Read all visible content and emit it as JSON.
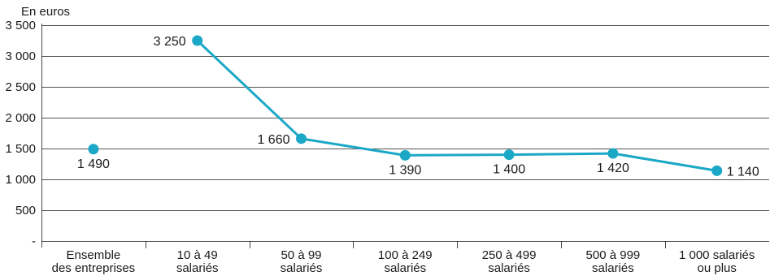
{
  "chart_data": {
    "type": "line",
    "ylabel": "En euros",
    "ylim": [
      0,
      3500
    ],
    "yticks": [
      {
        "value": 0,
        "label": "-"
      },
      {
        "value": 500,
        "label": "500"
      },
      {
        "value": 1000,
        "label": "1 000"
      },
      {
        "value": 1500,
        "label": "1 500"
      },
      {
        "value": 2000,
        "label": "2 000"
      },
      {
        "value": 2500,
        "label": "2 500"
      },
      {
        "value": 3000,
        "label": "3 000"
      },
      {
        "value": 3500,
        "label": "3 500"
      }
    ],
    "grid": true,
    "categories": [
      [
        "Ensemble",
        "des entreprises"
      ],
      [
        "10 à 49",
        "salariés"
      ],
      [
        "50 à 99",
        "salariés"
      ],
      [
        "100 à 249",
        "salariés"
      ],
      [
        "250 à 499",
        "salariés"
      ],
      [
        "500 à 999",
        "salariés"
      ],
      [
        "1 000 salariés",
        "ou plus"
      ]
    ],
    "series": [
      {
        "values": [
          1490,
          3250,
          1660,
          1390,
          1400,
          1420,
          1140
        ],
        "labels": [
          "1 490",
          "3 250",
          "1 660",
          "1 390",
          "1 400",
          "1 420",
          "1 140"
        ],
        "connected": [
          false,
          true,
          true,
          true,
          true,
          true,
          true
        ],
        "color": "#1ba8c7"
      }
    ]
  }
}
